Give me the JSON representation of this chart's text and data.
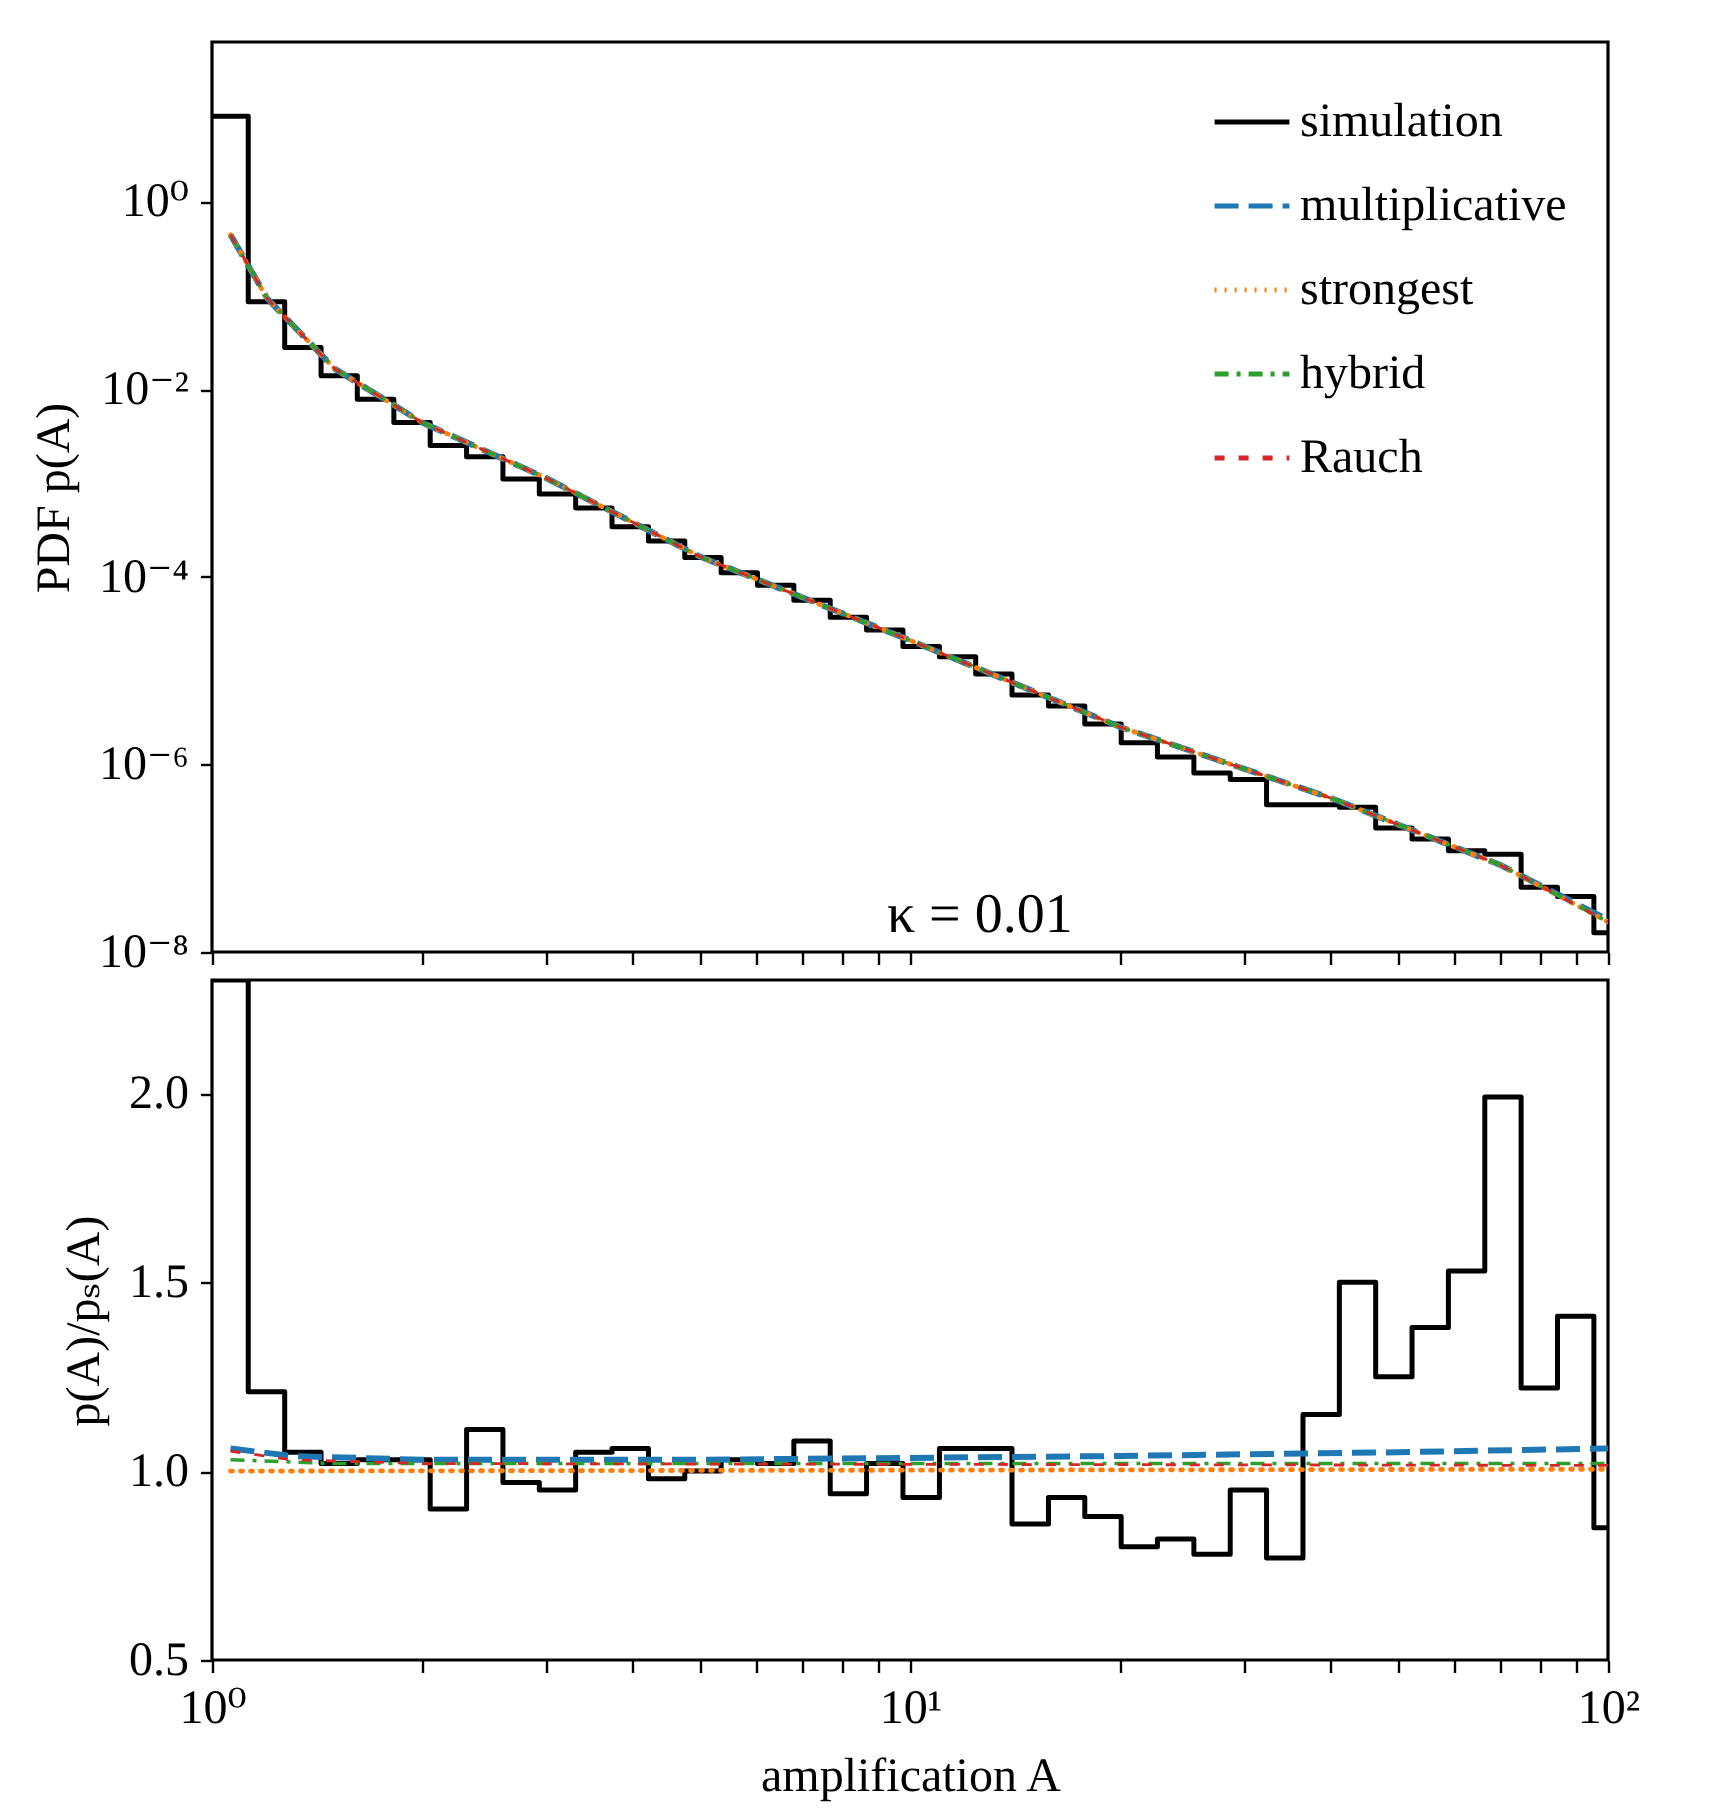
{
  "chart_data": [
    {
      "type": "histogram",
      "ylabel": "PDF p(A)",
      "annotations": [
        "κ = 0.01"
      ],
      "log": "xy",
      "legend": "top right",
      "tick_labels": "y",
      "xlim": [
        1,
        100
      ],
      "xticks": [
        {
          "value": 1,
          "label": null
        },
        {
          "value": 2,
          "label": null
        },
        {
          "value": 3,
          "label": null
        },
        {
          "value": 4,
          "label": null
        },
        {
          "value": 5,
          "label": null
        },
        {
          "value": 6,
          "label": null
        },
        {
          "value": 7,
          "label": null
        },
        {
          "value": 8,
          "label": null
        },
        {
          "value": 9,
          "label": null
        },
        {
          "value": 10,
          "label": null
        },
        {
          "value": 20,
          "label": null
        },
        {
          "value": 30,
          "label": null
        },
        {
          "value": 40,
          "label": null
        },
        {
          "value": 50,
          "label": null
        },
        {
          "value": 60,
          "label": null
        },
        {
          "value": 70,
          "label": null
        },
        {
          "value": 80,
          "label": null
        },
        {
          "value": 90,
          "label": null
        },
        {
          "value": 100,
          "label": null
        }
      ],
      "ylim": [
        1e-08,
        50
      ],
      "yticks": [
        {
          "value": 1,
          "label": "10⁰"
        },
        {
          "value": 0.01,
          "label": "10⁻²"
        },
        {
          "value": 0.0001,
          "label": "10⁻⁴"
        },
        {
          "value": 1e-06,
          "label": "10⁻⁶"
        },
        {
          "value": 1e-08,
          "label": "10⁻⁸"
        }
      ],
      "bins": [
        1,
        1.127,
        1.271,
        1.433,
        1.615,
        1.822,
        2.054,
        2.316,
        2.611,
        2.944,
        3.319,
        3.742,
        4.22,
        4.757,
        5.363,
        6.046,
        6.817,
        7.686,
        8.665,
        9.77,
        11.02,
        12.42,
        14.0,
        15.79,
        17.8,
        20.07,
        22.62,
        25.51,
        28.76,
        32.42,
        36.56,
        41.22,
        46.47,
        52.39,
        59.07,
        66.6,
        75.08,
        84.65,
        95.45,
        100
      ],
      "series": [
        {
          "name": "simulation",
          "color": "#000000",
          "line_style": "solid",
          "values": [
            8.1,
            0.085,
            0.0278,
            0.0139,
            0.0078,
            0.0044,
            0.0025,
            0.0019,
            0.0011,
            0.00076,
            0.00054,
            0.00034,
            0.00024,
            0.00016,
            0.00011,
            8.1e-05,
            5.6e-05,
            3.7e-05,
            2.7e-05,
            1.8e-05,
            1.4e-05,
            9.2e-06,
            5.5e-06,
            4.2e-06,
            2.7e-06,
            1.7e-06,
            1.2e-06,
            8.1e-07,
            6.9e-07,
            3.7e-07,
            3.7e-07,
            3.5e-07,
            2.1e-07,
            1.6e-07,
            1.2e-07,
            1.1e-07,
            4.9e-08,
            3.9e-08,
            1.6e-08
          ]
        },
        {
          "name": "multiplicative",
          "type": "line",
          "color": "#1f77b4",
          "line_style": "dashed",
          "x": [
            1.063,
            1.2,
            1.5,
            2,
            3,
            5,
            10,
            20,
            40,
            70,
            100
          ],
          "values": [
            0.44,
            0.092,
            0.0164,
            0.0044,
            0.00114,
            0.000164,
            2.1e-05,
            2.5e-06,
            4.4e-07,
            8.5e-08,
            2.2e-08
          ]
        },
        {
          "name": "strongest",
          "type": "line",
          "color": "#ff7f0e",
          "line_style": "dotted",
          "x": [
            1.063,
            1.2,
            1.5,
            2,
            3,
            5,
            10,
            20,
            40,
            70,
            100
          ],
          "values": [
            0.44,
            0.092,
            0.0164,
            0.0044,
            0.00114,
            0.000164,
            2.1e-05,
            2.5e-06,
            4.4e-07,
            8.5e-08,
            2.1e-08
          ]
        },
        {
          "name": "hybrid",
          "type": "line",
          "color": "#2ca02c",
          "line_style": "dashdot",
          "x": [
            1.063,
            1.2,
            1.5,
            2,
            3,
            5,
            10,
            20,
            40,
            70,
            100
          ],
          "values": [
            0.44,
            0.092,
            0.0164,
            0.0044,
            0.00114,
            0.000164,
            2.1e-05,
            2.5e-06,
            4.4e-07,
            8.5e-08,
            2.1e-08
          ]
        },
        {
          "name": "Rauch",
          "type": "line",
          "color": "#d62728",
          "line_style": "dashed",
          "x": [
            1.063,
            1.2,
            1.5,
            2,
            3,
            5,
            10,
            20,
            40,
            70,
            100
          ],
          "values": [
            0.44,
            0.092,
            0.0164,
            0.0044,
            0.00114,
            0.000164,
            2.1e-05,
            2.5e-06,
            4.4e-07,
            8.5e-08,
            2.1e-08
          ]
        }
      ]
    },
    {
      "type": "histogram",
      "xlabel": "amplification A",
      "ylabel": "p(A)/pₛ(A)",
      "log": "x",
      "xlim": [
        1,
        100
      ],
      "xticks": [
        {
          "value": 1,
          "label": "10⁰"
        },
        {
          "value": 2,
          "label": null
        },
        {
          "value": 3,
          "label": null
        },
        {
          "value": 4,
          "label": null
        },
        {
          "value": 5,
          "label": null
        },
        {
          "value": 6,
          "label": null
        },
        {
          "value": 7,
          "label": null
        },
        {
          "value": 8,
          "label": null
        },
        {
          "value": 9,
          "label": null
        },
        {
          "value": 10,
          "label": "10¹"
        },
        {
          "value": 20,
          "label": null
        },
        {
          "value": 30,
          "label": null
        },
        {
          "value": 40,
          "label": null
        },
        {
          "value": 50,
          "label": null
        },
        {
          "value": 60,
          "label": null
        },
        {
          "value": 70,
          "label": null
        },
        {
          "value": 80,
          "label": null
        },
        {
          "value": 90,
          "label": null
        },
        {
          "value": 100,
          "label": "10²"
        }
      ],
      "ylim": [
        0.5,
        2.3
      ],
      "yticks": [
        {
          "value": 0.5,
          "label": "0.5"
        },
        {
          "value": 1,
          "label": "1.0"
        },
        {
          "value": 1.5,
          "label": "1.5"
        },
        {
          "value": 2,
          "label": "2.0"
        }
      ],
      "bins": [
        1,
        1.127,
        1.271,
        1.433,
        1.615,
        1.822,
        2.054,
        2.316,
        2.611,
        2.944,
        3.319,
        3.742,
        4.22,
        4.757,
        5.363,
        6.046,
        6.817,
        7.686,
        8.665,
        9.77,
        11.02,
        12.42,
        14.0,
        15.79,
        17.8,
        20.07,
        22.62,
        25.51,
        28.76,
        32.42,
        36.56,
        41.22,
        46.47,
        52.39,
        59.07,
        66.6,
        75.08,
        84.65,
        95.45,
        100
      ],
      "series": [
        {
          "color": "#000000",
          "line_style": "solid",
          "values": [
            2.3,
            1.21,
            1.05,
            1.02,
            1.03,
            1.03,
            0.9,
            1.11,
            0.97,
            0.95,
            1.05,
            1.06,
            0.98,
            1.0,
            1.03,
            1.02,
            1.08,
            0.94,
            1.02,
            0.93,
            1.06,
            1.06,
            0.86,
            0.93,
            0.88,
            0.8,
            0.82,
            0.78,
            0.95,
            0.77,
            1.15,
            1.5,
            1.25,
            1.38,
            1.53,
            1.99,
            1.22,
            1.41,
            0.85
          ]
        },
        {
          "type": "line",
          "color": "#1f77b4",
          "line_style": "dashed",
          "x": [
            1.063,
            1.3,
            2,
            5,
            10,
            20,
            50,
            100
          ],
          "values": [
            1.06,
            1.04,
            1.03,
            1.03,
            1.035,
            1.04,
            1.05,
            1.06
          ]
        },
        {
          "type": "line",
          "color": "#ff7f0e",
          "line_style": "dotted",
          "x": [
            1.063,
            100
          ],
          "values": [
            1.0,
            1.005
          ]
        },
        {
          "type": "line",
          "color": "#2ca02c",
          "line_style": "dashdot",
          "x": [
            1.063,
            1.5,
            100
          ],
          "values": [
            1.03,
            1.02,
            1.02
          ]
        },
        {
          "type": "line",
          "color": "#d62728",
          "line_style": "dashed",
          "x": [
            1.063,
            1.3,
            2,
            100
          ],
          "values": [
            1.053,
            1.03,
            1.02,
            1.015
          ]
        }
      ]
    }
  ]
}
